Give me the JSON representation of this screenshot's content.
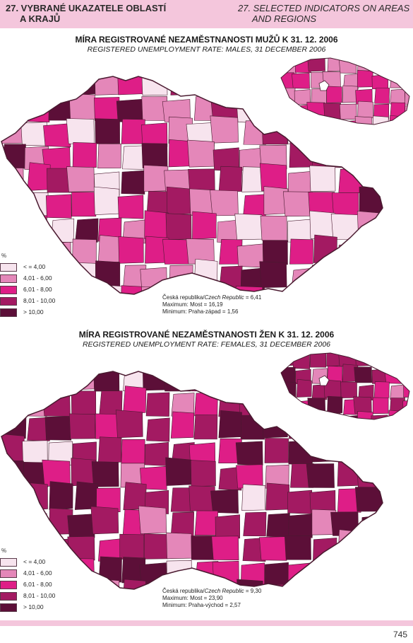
{
  "header": {
    "left_line1": "27. VYBRANÉ UKAZATELE OBLASTÍ",
    "left_line2": "A KRAJŮ",
    "right_line1": "27. SELECTED INDICATORS ON AREAS",
    "right_line2": "AND REGIONS"
  },
  "legend_palette": [
    "#f7e4ee",
    "#e487b9",
    "#de1e87",
    "#a31a62",
    "#5c0f38"
  ],
  "legend_labels": [
    "< = 4,00",
    "4,01 - 6,00",
    "6,01 - 8,00",
    "8,01 - 10,00",
    "> 10,00"
  ],
  "maps": [
    {
      "title": "MÍRA REGISTROVANÉ NEZAMĚSTNANOSTI MUŽŮ K 31. 12. 2006",
      "subtitle": "REGISTERED UNEMPLOYMENT RATE: MALES, 31 DECEMBER 2006",
      "unit": "%",
      "stats_line1_cz": "Česká republika/",
      "stats_line1_en": "Czech Republic",
      "stats_line1_val": " = 6,41",
      "stats_line2": "Maximum: Most = 16,19",
      "stats_line3": "Minimum: Praha-západ = 1,56"
    },
    {
      "title": "MÍRA REGISTROVANÉ NEZAMĚSTNANOSTI ŽEN K 31. 12. 2006",
      "subtitle": "REGISTERED UNEMPLOYMENT RATE: FEMALES, 31 DECEMBER 2006",
      "unit": "%",
      "stats_line1_cz": "Česká republika/",
      "stats_line1_en": "Czech Republic",
      "stats_line1_val": " = 9,30",
      "stats_line2": "Maximum: Most = 23,90",
      "stats_line3": "Minimum: Praha-východ = 2,57"
    }
  ],
  "page_number": "745"
}
